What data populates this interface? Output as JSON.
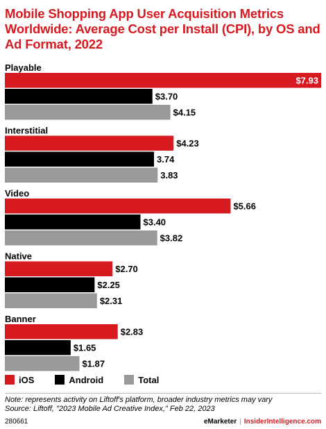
{
  "title": "Mobile Shopping App User Acquisition Metrics Worldwide: Average Cost per Install (CPI), by OS and Ad Format, 2022",
  "chart_data": {
    "type": "bar",
    "orientation": "horizontal",
    "categories": [
      "Playable",
      "Interstitial",
      "Video",
      "Native",
      "Banner"
    ],
    "series": [
      {
        "name": "iOS",
        "color": "#d71920",
        "values": [
          7.93,
          4.23,
          5.66,
          2.7,
          2.83
        ],
        "labels": [
          "$7.93",
          "$4.23",
          "$5.66",
          "$2.70",
          "$2.83"
        ]
      },
      {
        "name": "Android",
        "color": "#000000",
        "values": [
          3.7,
          3.74,
          3.4,
          2.25,
          1.65
        ],
        "labels": [
          "$3.70",
          "3.74",
          "$3.40",
          "$2.25",
          "$1.65"
        ]
      },
      {
        "name": "Total",
        "color": "#999999",
        "values": [
          4.15,
          3.83,
          3.82,
          2.31,
          1.87
        ],
        "labels": [
          "$4.15",
          "3.83",
          "$3.82",
          "$2.31",
          "$1.87"
        ]
      }
    ],
    "xlim": [
      0,
      7.93
    ],
    "grid": false,
    "legend_position": "bottom-left"
  },
  "note": "Note: represents activity on Liftoff's platform, broader industry metrics may vary",
  "source": "Source: Liftoff, \"2023 Mobile Ad Creative Index,\" Feb 22, 2023",
  "footer": {
    "chart_id": "280661",
    "brand_emarketer": "eMarketer",
    "brand_separator": "|",
    "brand_insider": "InsiderIntelligence.com"
  }
}
